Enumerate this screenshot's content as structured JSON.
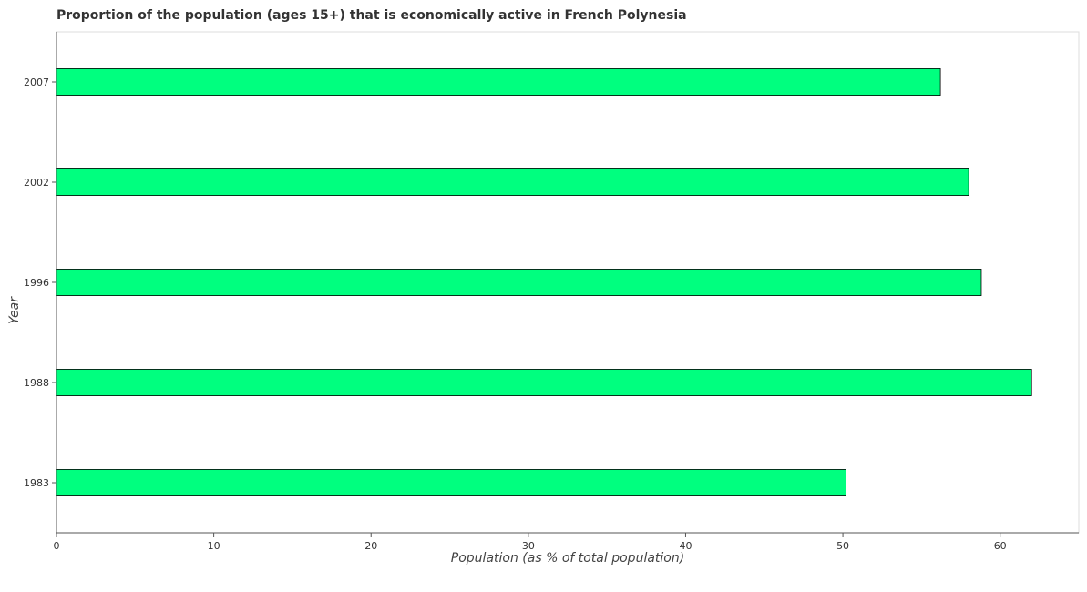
{
  "chart_data": {
    "type": "bar",
    "orientation": "horizontal",
    "title": "Proportion of the population (ages 15+) that is economically active in French Polynesia",
    "xlabel": "Population (as % of total population)",
    "ylabel": "Year",
    "categories": [
      "1983",
      "1988",
      "1996",
      "2002",
      "2007"
    ],
    "values": [
      50.2,
      62.0,
      58.8,
      58.0,
      56.2
    ],
    "xlim": [
      0,
      65
    ],
    "xticks": [
      0,
      10,
      20,
      30,
      40,
      50,
      60
    ],
    "grid": false,
    "bar_color": "#00ff7f",
    "bar_edge_color": "#000000"
  }
}
